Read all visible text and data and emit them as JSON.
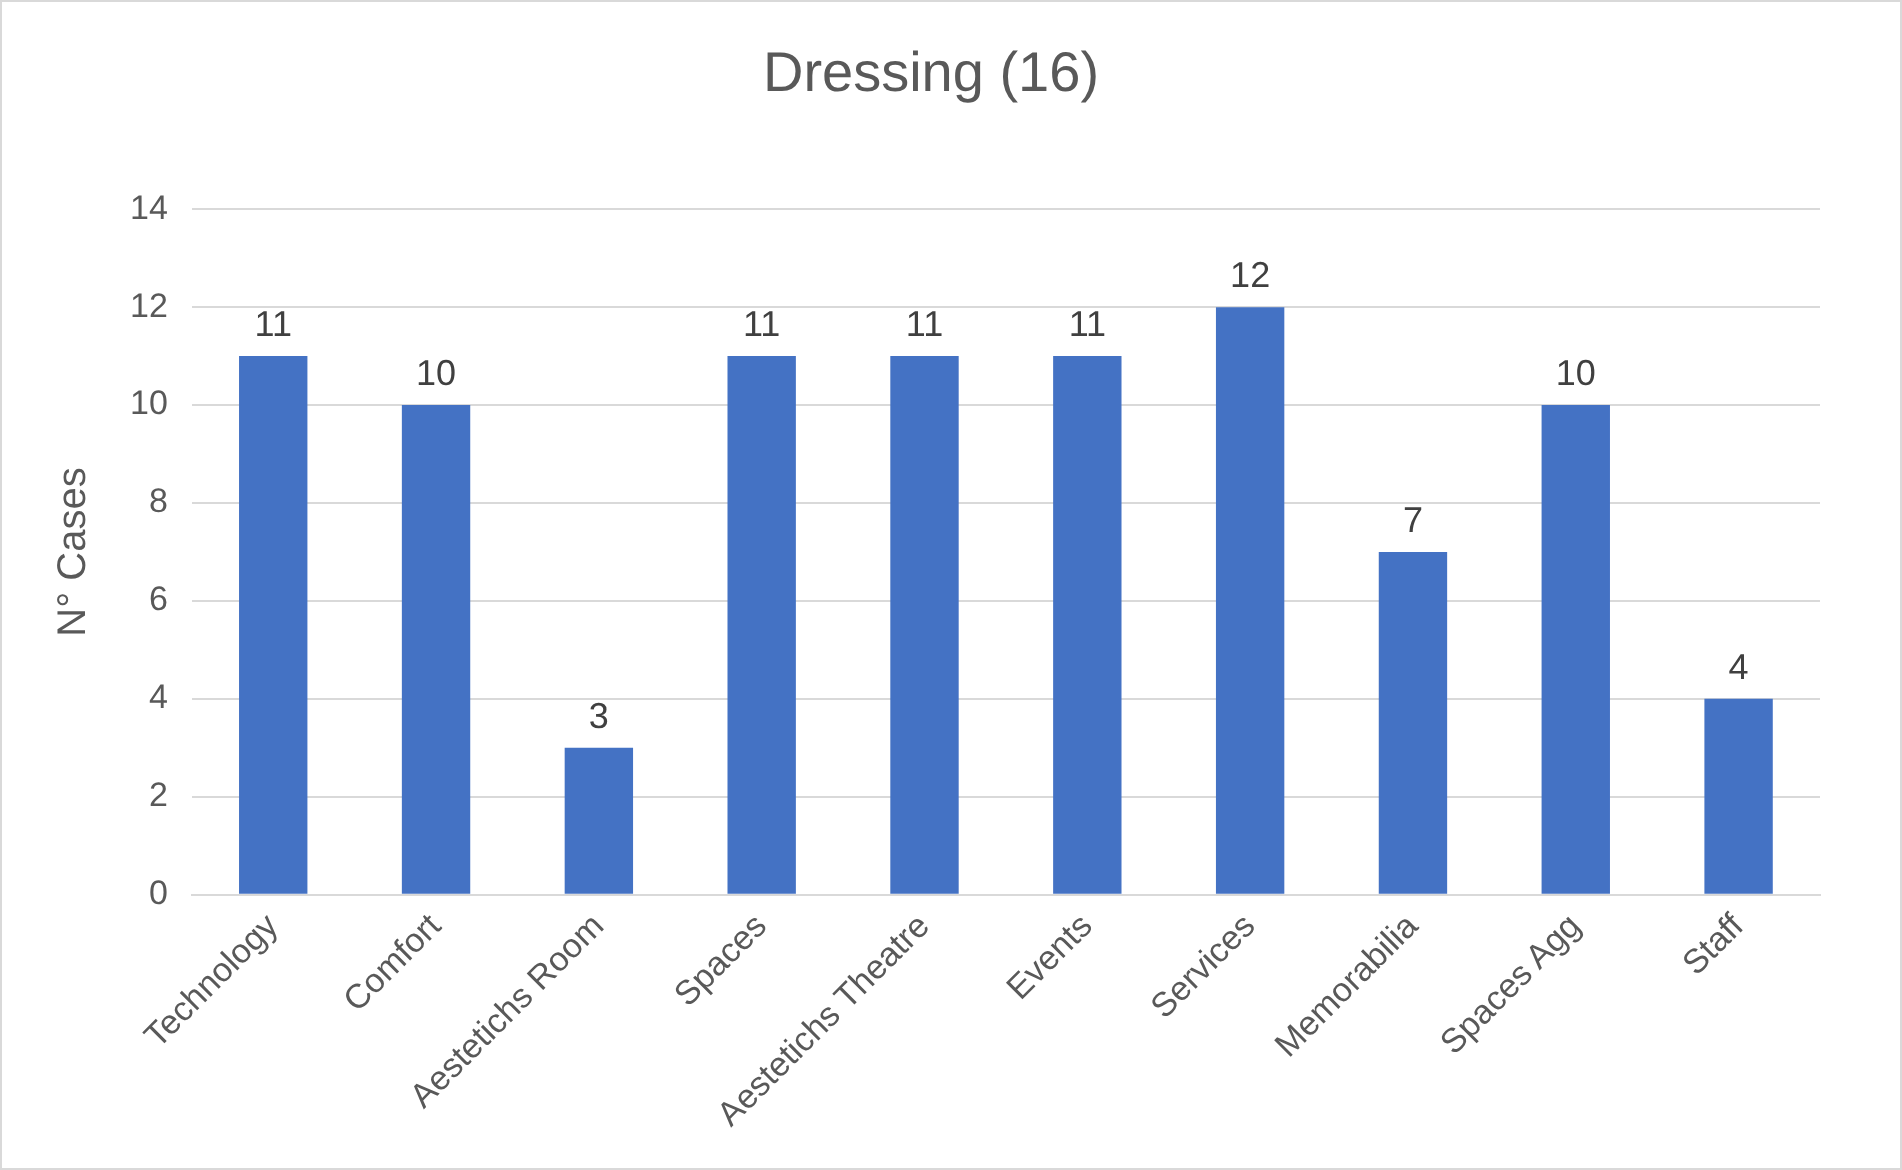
{
  "chart_data": {
    "type": "bar",
    "title": "Dressing (16)",
    "ylabel": "N° Cases",
    "categories": [
      "Technology",
      "Comfort",
      "Aestetichs Room",
      "Spaces",
      "Aestetichs Theatre",
      "Events",
      "Services",
      "Memorabilia",
      "Spaces Agg",
      "Staff"
    ],
    "values": [
      11,
      10,
      3,
      11,
      11,
      11,
      12,
      7,
      10,
      4
    ],
    "color": "#4472c4",
    "ylim": [
      0,
      14
    ],
    "yticks": [
      0,
      2,
      4,
      6,
      8,
      10,
      12,
      14
    ],
    "grid": "y",
    "data_labels": true,
    "legend": false
  }
}
